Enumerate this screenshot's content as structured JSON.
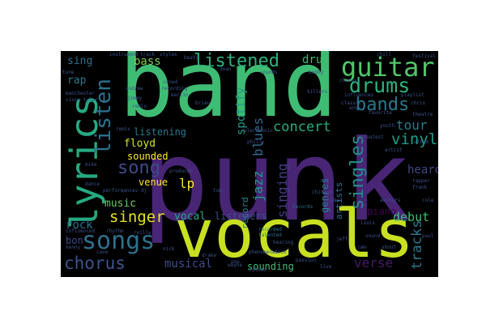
{
  "words": [
    {
      "text": "band",
      "color": "#3fbc73",
      "weight": 1.0
    },
    {
      "text": "punk",
      "color": "#482575",
      "weight": 1.0
    },
    {
      "text": "vocals",
      "color": "#c8e020",
      "weight": 0.8
    },
    {
      "text": "lyrics",
      "color": "#25ab82",
      "weight": 0.45
    },
    {
      "text": "songs",
      "color": "#2d708e",
      "weight": 0.35
    },
    {
      "text": "guitar",
      "color": "#52c569",
      "weight": 0.35
    },
    {
      "text": "drums",
      "color": "#2db27d",
      "weight": 0.3
    },
    {
      "text": "bands",
      "color": "#2a788e",
      "weight": 0.3
    },
    {
      "text": "listened",
      "color": "#2ab07f",
      "weight": 0.28
    },
    {
      "text": "chorus",
      "color": "#3a548c",
      "weight": 0.28
    },
    {
      "text": "singles",
      "color": "#21918c",
      "weight": 0.28
    },
    {
      "text": "listen",
      "color": "#2c718e",
      "weight": 0.28
    },
    {
      "text": "singer",
      "color": "#e5e419",
      "weight": 0.25
    },
    {
      "text": "song",
      "color": "#3e4a89",
      "weight": 0.25
    },
    {
      "text": "concert",
      "color": "#26ad81",
      "weight": 0.22
    },
    {
      "text": "vinyl",
      "color": "#1f9e89",
      "weight": 0.22
    },
    {
      "text": "tour",
      "color": "#2a788e",
      "weight": 0.22
    },
    {
      "text": "singing",
      "color": "#433e85",
      "weight": 0.2
    },
    {
      "text": "tracks",
      "color": "#2a788e",
      "weight": 0.2
    },
    {
      "text": "verse",
      "color": "#481a6c",
      "weight": 0.2
    },
    {
      "text": "debut",
      "color": "#3dbc74",
      "weight": 0.2
    },
    {
      "text": "heard",
      "color": "#3f4889",
      "weight": 0.2
    },
    {
      "text": "spotify",
      "color": "#1f9a8a",
      "weight": 0.2
    },
    {
      "text": "jazz",
      "color": "#1e9c89",
      "weight": 0.2
    },
    {
      "text": "blues",
      "color": "#31668e",
      "weight": 0.2
    },
    {
      "text": "drum",
      "color": "#3fbc73",
      "weight": 0.2
    },
    {
      "text": "bass",
      "color": "#7ad151",
      "weight": 0.2
    },
    {
      "text": "rock",
      "color": "#2e6f8e",
      "weight": 0.2
    },
    {
      "text": "music",
      "color": "#63cb5f",
      "weight": 0.2
    },
    {
      "text": "listeners",
      "color": "#3b528b",
      "weight": 0.2
    },
    {
      "text": "vocal",
      "color": "#24aa83",
      "weight": 0.2
    },
    {
      "text": "musical",
      "color": "#3e4c8a",
      "weight": 0.18
    },
    {
      "text": "sounding",
      "color": "#3fbc73",
      "weight": 0.16
    },
    {
      "text": "listening",
      "color": "#2a788e",
      "weight": 0.16
    },
    {
      "text": "floyd",
      "color": "#d2e21b",
      "weight": 0.18
    },
    {
      "text": "sounded",
      "color": "#fde725",
      "weight": 0.16
    },
    {
      "text": "venue",
      "color": "#fde725",
      "weight": 0.16
    },
    {
      "text": "lp",
      "color": "#fde725",
      "weight": 0.2
    },
    {
      "text": "sing",
      "color": "#2c728e",
      "weight": 0.18
    },
    {
      "text": "rap",
      "color": "#2a778e",
      "weight": 0.18
    },
    {
      "text": "genres",
      "color": "#25848e",
      "weight": 0.14
    },
    {
      "text": "artists",
      "color": "#2c728e",
      "weight": 0.12
    },
    {
      "text": "record",
      "color": "#26828e",
      "weight": 0.12
    },
    {
      "text": "piano",
      "color": "#440154",
      "weight": 0.14
    },
    {
      "text": "bon",
      "color": "#3e4989",
      "weight": 0.14
    },
    {
      "text": "recorded",
      "color": "#2a788e",
      "weight": 0.06
    },
    {
      "text": "talented",
      "color": "#2d708e",
      "weight": 0.06
    },
    {
      "text": "records",
      "color": "#2d708e",
      "weight": 0.06
    },
    {
      "text": "manchester",
      "color": "#3b528b",
      "weight": 0.05
    },
    {
      "text": "vince tyler",
      "color": "#3b528b",
      "weight": 0.05
    },
    {
      "text": "influenced",
      "color": "#3b528b",
      "weight": 0.05
    },
    {
      "text": "rhythm",
      "color": "#3b528b",
      "weight": 0.05
    },
    {
      "text": "kenny",
      "color": "#3b528b",
      "weight": 0.05
    },
    {
      "text": "reilly",
      "color": "#3b528b",
      "weight": 0.05
    },
    {
      "text": "mike",
      "color": "#3b528b",
      "weight": 0.05
    },
    {
      "text": "dance",
      "color": "#3b528b",
      "weight": 0.05
    },
    {
      "text": "performances dj",
      "color": "#3b528b",
      "weight": 0.05
    },
    {
      "text": "cave",
      "color": "#3b528b",
      "weight": 0.05
    },
    {
      "text": "nick",
      "color": "#3b528b",
      "weight": 0.05
    },
    {
      "text": "drake",
      "color": "#3b528b",
      "weight": 0.05
    },
    {
      "text": "pop",
      "color": "#3b528b",
      "weight": 0.05
    },
    {
      "text": "crowd",
      "color": "#3b528b",
      "weight": 0.05
    },
    {
      "text": "recording",
      "color": "#3b528b",
      "weight": 0.05
    },
    {
      "text": "andrew",
      "color": "#3b528b",
      "weight": 0.05
    },
    {
      "text": "jimmy",
      "color": "#3b528b",
      "weight": 0.05
    },
    {
      "text": "radio",
      "color": "#3b528b",
      "weight": 0.05
    },
    {
      "text": "martin",
      "color": "#3b528b",
      "weight": 0.05
    },
    {
      "text": "brian",
      "color": "#3b528b",
      "weight": 0.05
    },
    {
      "text": "dean",
      "color": "#3b528b",
      "weight": 0.05
    },
    {
      "text": "beats",
      "color": "#3b528b",
      "weight": 0.05
    },
    {
      "text": "styles",
      "color": "#3b528b",
      "weight": 0.05
    },
    {
      "text": "track",
      "color": "#3b528b",
      "weight": 0.05
    },
    {
      "text": "tune",
      "color": "#3b528b",
      "weight": 0.05
    },
    {
      "text": "instrument",
      "color": "#3b528b",
      "weight": 0.05
    },
    {
      "text": "sounds",
      "color": "#3b528b",
      "weight": 0.05
    },
    {
      "text": "bobby",
      "color": "#3b528b",
      "weight": 0.05
    },
    {
      "text": "killers",
      "color": "#3b528b",
      "weight": 0.05
    },
    {
      "text": "cheesy",
      "color": "#3b528b",
      "weight": 0.05
    },
    {
      "text": "chill",
      "color": "#3b528b",
      "weight": 0.05
    },
    {
      "text": "festival",
      "color": "#3b528b",
      "weight": 0.05
    },
    {
      "text": "playlist",
      "color": "#3b528b",
      "weight": 0.05
    },
    {
      "text": "chris",
      "color": "#3b528b",
      "weight": 0.05
    },
    {
      "text": "influences",
      "color": "#3b528b",
      "weight": 0.05
    },
    {
      "text": "andy",
      "color": "#3b528b",
      "weight": 0.05
    },
    {
      "text": "favorite",
      "color": "#3b528b",
      "weight": 0.05
    },
    {
      "text": "theatre",
      "color": "#3b528b",
      "weight": 0.05
    },
    {
      "text": "album",
      "color": "#3b528b",
      "weight": 0.05
    },
    {
      "text": "artist",
      "color": "#3b528b",
      "weight": 0.05
    },
    {
      "text": "greatest",
      "color": "#3b528b",
      "weight": 0.05
    },
    {
      "text": "youth",
      "color": "#3b528b",
      "weight": 0.05
    },
    {
      "text": "rapper",
      "color": "#3b528b",
      "weight": 0.05
    },
    {
      "text": "frank",
      "color": "#3b528b",
      "weight": 0.05
    },
    {
      "text": "cole",
      "color": "#3b528b",
      "weight": 0.05
    },
    {
      "text": "anchors",
      "color": "#3b528b",
      "weight": 0.05
    },
    {
      "text": "louis",
      "color": "#3b528b",
      "weight": 0.05
    },
    {
      "text": "jeff",
      "color": "#3b528b",
      "weight": 0.05
    },
    {
      "text": "paul",
      "color": "#3b528b",
      "weight": 0.05
    },
    {
      "text": "shout",
      "color": "#3b528b",
      "weight": 0.05
    },
    {
      "text": "sound",
      "color": "#3b528b",
      "weight": 0.05
    },
    {
      "text": "jam",
      "color": "#3b528b",
      "weight": 0.05
    },
    {
      "text": "passion",
      "color": "#3b528b",
      "weight": 0.05
    },
    {
      "text": "live",
      "color": "#3b528b",
      "weight": 0.05
    },
    {
      "text": "label",
      "color": "#3b528b",
      "weight": 0.05
    },
    {
      "text": "rad",
      "color": "#3b528b",
      "weight": 0.05
    },
    {
      "text": "philly",
      "color": "#3b528b",
      "weight": 0.05
    },
    {
      "text": "electronic",
      "color": "#3b528b",
      "weight": 0.05
    },
    {
      "text": "producer",
      "color": "#3b528b",
      "weight": 0.05
    },
    {
      "text": "wayne",
      "color": "#3b528b",
      "weight": 0.05
    },
    {
      "text": "tom",
      "color": "#3b528b",
      "weight": 0.05
    },
    {
      "text": "phenomenal",
      "color": "#3b528b",
      "weight": 0.05
    },
    {
      "text": "hearing",
      "color": "#3b528b",
      "weight": 0.05
    },
    {
      "text": "talked",
      "color": "#3b528b",
      "weight": 0.05
    },
    {
      "text": "remix",
      "color": "#3b528b",
      "weight": 0.05
    },
    {
      "text": "classic",
      "color": "#3b528b",
      "weight": 0.05
    },
    {
      "text": "sick",
      "color": "#3b528b",
      "weight": 0.05
    },
    {
      "text": "chicago",
      "color": "#3b528b",
      "weight": 0.05
    }
  ]
}
